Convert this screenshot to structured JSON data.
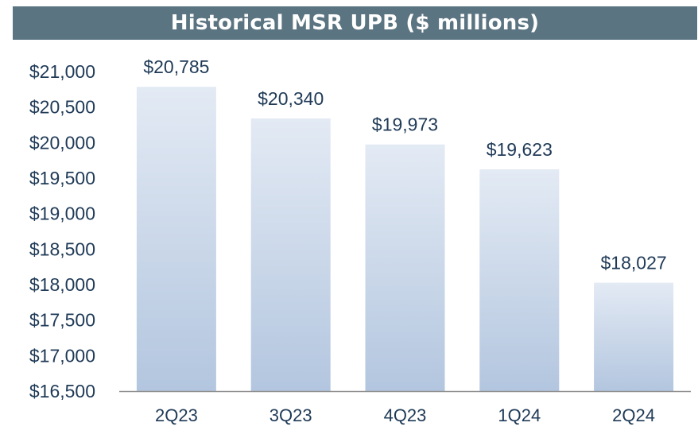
{
  "chart_data": {
    "type": "bar",
    "title": "Historical MSR UPB ($ millions)",
    "categories": [
      "2Q23",
      "3Q23",
      "4Q23",
      "1Q24",
      "2Q24"
    ],
    "values": [
      20785,
      20340,
      19973,
      19623,
      18027
    ],
    "data_labels": [
      "$20,785",
      "$20,340",
      "$19,973",
      "$19,623",
      "$18,027"
    ],
    "ylim": [
      16500,
      21000
    ],
    "yticks": [
      16500,
      17000,
      17500,
      18000,
      18500,
      19000,
      19500,
      20000,
      20500,
      21000
    ],
    "ytick_labels": [
      "$16,500",
      "$17,000",
      "$17,500",
      "$18,000",
      "$18,500",
      "$19,000",
      "$19,500",
      "$20,000",
      "$20,500",
      "$21,000"
    ],
    "grid": false,
    "legend": "none",
    "colors": {
      "title_bg": "#5b7481",
      "title_text": "#ffffff",
      "bar_top": "#e3eaf4",
      "bar_bottom": "#b3c6df",
      "axis_line": "#8f8f8f",
      "label_text": "#1f3a57"
    }
  }
}
